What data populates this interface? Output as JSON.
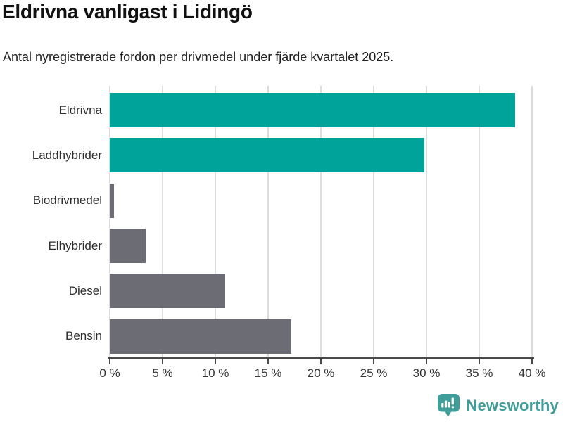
{
  "title": "Eldrivna vanligast i Lidingö",
  "subtitle": "Antal nyregistrerade fordon per drivmedel under fjärde kvartalet 2025.",
  "chart_data": {
    "type": "bar",
    "orientation": "horizontal",
    "title": "Eldrivna vanligast i Lidingö",
    "subtitle": "Antal nyregistrerade fordon per drivmedel under fjärde kvartalet 2025.",
    "categories": [
      "Eldrivna",
      "Laddhybrider",
      "Biodrivmedel",
      "Elhybrider",
      "Diesel",
      "Bensin"
    ],
    "values": [
      38.4,
      29.8,
      0.4,
      3.4,
      10.9,
      17.2
    ],
    "unit": "%",
    "bar_colors": [
      "#00a39a",
      "#00a39a",
      "#6c6c75",
      "#6c6c75",
      "#6c6c75",
      "#6c6c75"
    ],
    "xlim": [
      0,
      40
    ],
    "x_tick_values": [
      0,
      5,
      10,
      15,
      20,
      25,
      30,
      35,
      40
    ],
    "x_tick_labels": [
      "0 %",
      "5 %",
      "10 %",
      "15 %",
      "20 %",
      "25 %",
      "30 %",
      "35 %",
      "40 %"
    ],
    "grid": true,
    "legend": false
  },
  "colors": {
    "accent_teal": "#00a39a",
    "bar_gray": "#6c6c75",
    "gridline": "#dcdcdc",
    "axis": "#4a4a4a",
    "title_text": "#111111",
    "subtitle_text": "#212121",
    "tick_text": "#333333",
    "logo_teal": "#3f9e99"
  },
  "footer": {
    "brand": "Newsworthy"
  }
}
